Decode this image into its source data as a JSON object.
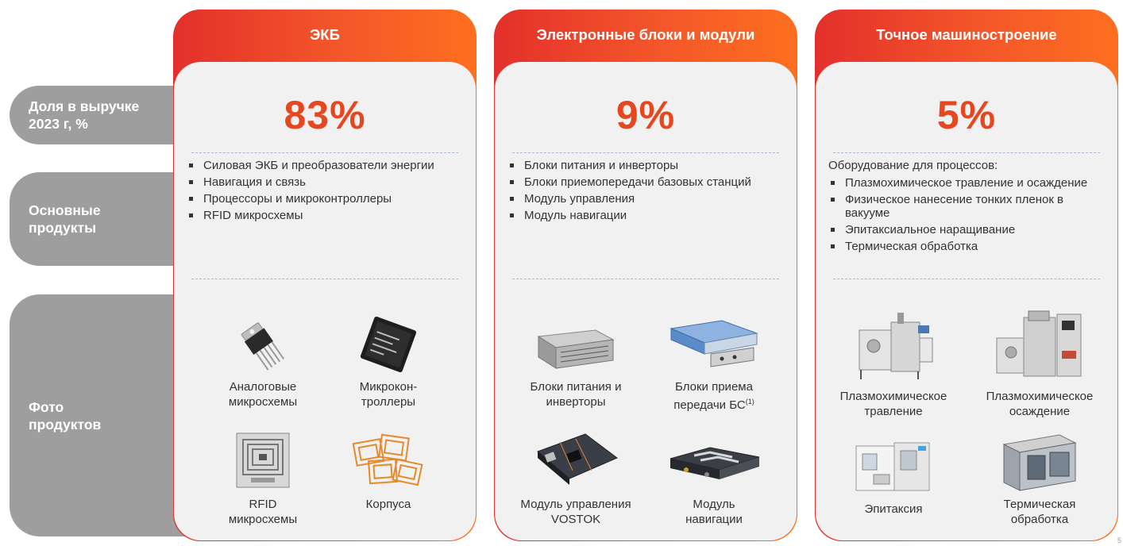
{
  "row_labels": {
    "share": "Доля в выручке\n2023 г, %",
    "products": "Основные\nпродукты",
    "photos": "Фото\nпродуктов"
  },
  "columns": [
    {
      "title": "ЭКБ",
      "percent": "83%",
      "intro": "",
      "products": [
        "Силовая ЭКБ и преобразователи энергии",
        "Навигация и связь",
        "Процессоры и микроконтроллеры",
        "RFID микросхемы"
      ],
      "photos": [
        {
          "caption": "Аналоговые\nмикросхемы",
          "icon": "transistor-icon"
        },
        {
          "caption": "Микрокон-\nтроллеры",
          "icon": "microcontroller-chip-icon"
        },
        {
          "caption": "RFID\nмикросхемы",
          "icon": "rfid-tag-icon"
        },
        {
          "caption": "Корпуса",
          "icon": "chip-packages-icon"
        }
      ]
    },
    {
      "title": "Электронные блоки и модули",
      "percent": "9%",
      "intro": "",
      "products": [
        "Блоки питания и инверторы",
        "Блоки приемопередачи базовых станций",
        "Модуль управления",
        "Модуль навигации"
      ],
      "photos": [
        {
          "caption": "Блоки питания и\nинверторы",
          "icon": "power-supply-rack-icon"
        },
        {
          "caption": "Блоки приема\nпередачи БС",
          "sup": "(1)",
          "icon": "transceiver-unit-icon"
        },
        {
          "caption": "Модуль управления\nVOSTOK",
          "icon": "control-board-icon"
        },
        {
          "caption": "Модуль\nнавигации",
          "icon": "navigation-module-icon"
        }
      ]
    },
    {
      "title": "Точное машиностроение",
      "percent": "5%",
      "intro": "Оборудование для процессов:",
      "products": [
        "Плазмохимическое травление и осаждение",
        "Физическое нанесение тонких пленок в вакууме",
        "Эпитаксиальное наращивание",
        "Термическая обработка"
      ],
      "photos": [
        {
          "caption": "Плазмохимическое\nтравление",
          "icon": "etching-machine-icon"
        },
        {
          "caption": "Плазмохимическое\nосаждение",
          "icon": "deposition-machine-icon"
        },
        {
          "caption": "Эпитаксия",
          "icon": "epitaxy-machine-icon"
        },
        {
          "caption": "Термическая\nобработка",
          "icon": "thermal-furnace-icon"
        }
      ]
    }
  ],
  "page_number": "5",
  "colors": {
    "accent": "#e6471f",
    "header_start": "#e3302b",
    "header_end": "#fd6f1f",
    "label_gray": "#9e9e9e",
    "card_bg": "#f1f1f1"
  }
}
